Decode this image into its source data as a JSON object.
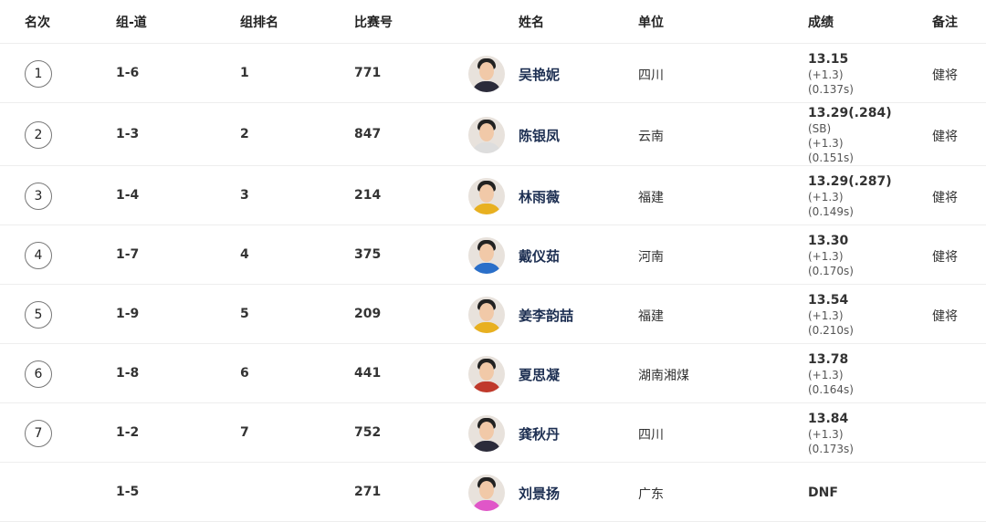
{
  "headers": [
    "名次",
    "组-道",
    "组排名",
    "比赛号",
    "姓名",
    "单位",
    "成绩",
    "备注"
  ],
  "rows": [
    {
      "rank": "1",
      "lane": "1-6",
      "group_rank": "1",
      "bib": "771",
      "name": "吴艳妮",
      "unit": "四川",
      "time": "13.15",
      "extra": [
        "(+1.3)",
        "(0.137s)"
      ],
      "note": "健将",
      "jersey": "#2b2b3a"
    },
    {
      "rank": "2",
      "lane": "1-3",
      "group_rank": "2",
      "bib": "847",
      "name": "陈银凤",
      "unit": "云南",
      "time": "13.29(.284)",
      "extra": [
        "(SB)",
        "(+1.3)",
        "(0.151s)"
      ],
      "note": "健将",
      "jersey": "#dddddd"
    },
    {
      "rank": "3",
      "lane": "1-4",
      "group_rank": "3",
      "bib": "214",
      "name": "林雨薇",
      "unit": "福建",
      "time": "13.29(.287)",
      "extra": [
        "(+1.3)",
        "(0.149s)"
      ],
      "note": "健将",
      "jersey": "#e8b020"
    },
    {
      "rank": "4",
      "lane": "1-7",
      "group_rank": "4",
      "bib": "375",
      "name": "戴仪茹",
      "unit": "河南",
      "time": "13.30",
      "extra": [
        "(+1.3)",
        "(0.170s)"
      ],
      "note": "健将",
      "jersey": "#2a6fc9"
    },
    {
      "rank": "5",
      "lane": "1-9",
      "group_rank": "5",
      "bib": "209",
      "name": "姜李韵喆",
      "unit": "福建",
      "time": "13.54",
      "extra": [
        "(+1.3)",
        "(0.210s)"
      ],
      "note": "健将",
      "jersey": "#e8b020"
    },
    {
      "rank": "6",
      "lane": "1-8",
      "group_rank": "6",
      "bib": "441",
      "name": "夏思凝",
      "unit": "湖南湘煤",
      "time": "13.78",
      "extra": [
        "(+1.3)",
        "(0.164s)"
      ],
      "note": "",
      "jersey": "#c0392b"
    },
    {
      "rank": "7",
      "lane": "1-2",
      "group_rank": "7",
      "bib": "752",
      "name": "龚秋丹",
      "unit": "四川",
      "time": "13.84",
      "extra": [
        "(+1.3)",
        "(0.173s)"
      ],
      "note": "",
      "jersey": "#2b2b3a"
    },
    {
      "rank": "",
      "lane": "1-5",
      "group_rank": "",
      "bib": "271",
      "name": "刘景扬",
      "unit": "广东",
      "time": "DNF",
      "extra": [],
      "note": "",
      "jersey": "#e056c8"
    }
  ]
}
